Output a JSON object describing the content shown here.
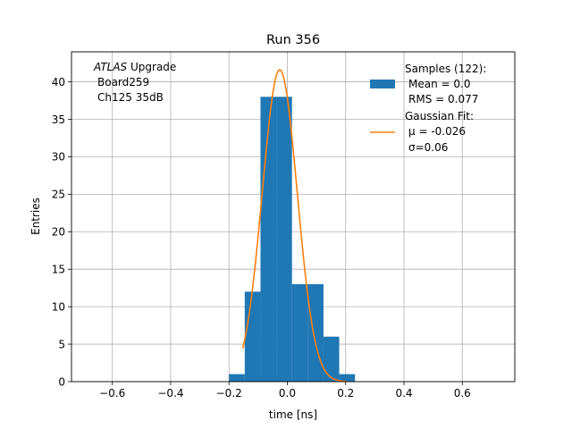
{
  "chart_data": {
    "type": "bar",
    "title": "Run 356",
    "xlabel": "time [ns]",
    "ylabel": "Entries",
    "xlim": [
      -0.74,
      0.78
    ],
    "ylim": [
      0,
      44
    ],
    "xticks": [
      -0.6,
      -0.4,
      -0.2,
      0.0,
      0.2,
      0.4,
      0.6
    ],
    "xtick_labels": [
      "−0.6",
      "−0.4",
      "−0.2",
      "0.0",
      "0.2",
      "0.4",
      "0.6"
    ],
    "yticks": [
      0,
      5,
      10,
      15,
      20,
      25,
      30,
      35,
      40
    ],
    "grid": true,
    "histogram": {
      "name": "Samples (122):",
      "color": "#1f77b4",
      "bin_edges": [
        -0.2,
        -0.146,
        -0.092,
        -0.038,
        0.016,
        0.07,
        0.124,
        0.178,
        0.232
      ],
      "counts": [
        1,
        12,
        38,
        38,
        13,
        13,
        6,
        1
      ]
    },
    "fit": {
      "type": "gaussian",
      "color": "#ff7f0e",
      "mu": -0.026,
      "sigma": 0.06,
      "amplitude": 41.6,
      "x_range": [
        -0.153,
        0.202
      ]
    },
    "annotation": {
      "italic": "ATLAS",
      "rest": " Upgrade",
      "line2": "Board259",
      "line3": "Ch125 35dB"
    },
    "legend": {
      "position": "top-right",
      "hist_lines": [
        "Samples (122):",
        "Mean = 0.0",
        "RMS = 0.077"
      ],
      "fit_lines": [
        "Gaussian Fit:",
        "μ = -0.026",
        "σ=0.06"
      ]
    }
  }
}
